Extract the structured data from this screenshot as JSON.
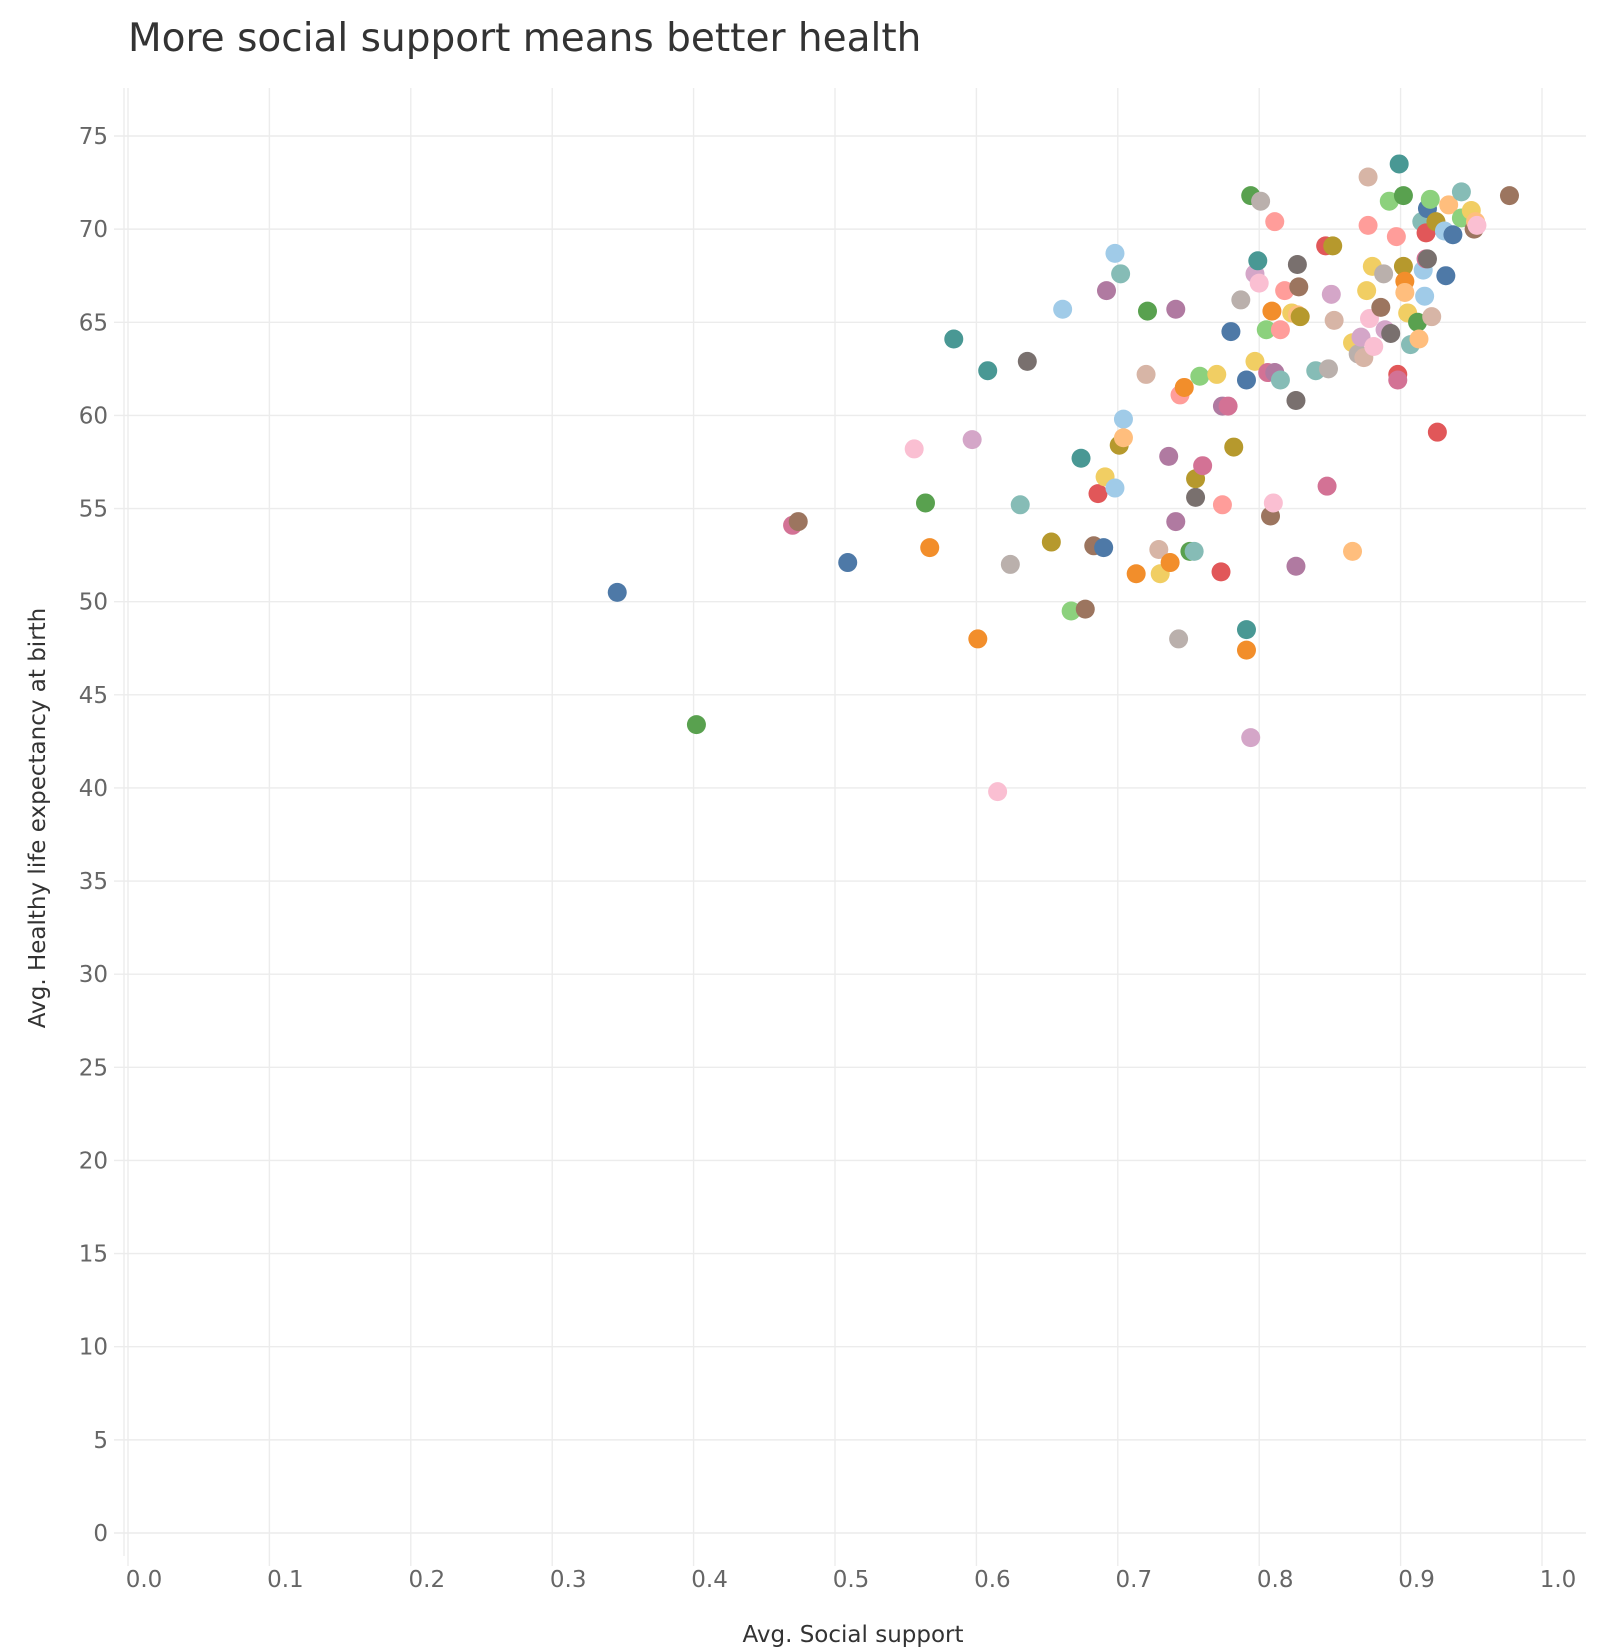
{
  "title": "More social support means better health",
  "chart_data": {
    "type": "scatter",
    "title": "More social support means better health",
    "xlabel": "Avg. Social support",
    "ylabel": "Avg. Healthy life expectancy at birth",
    "xlim": [
      0,
      1.0
    ],
    "ylim": [
      0,
      75
    ],
    "x_ticks": [
      "0.0",
      "0.1",
      "0.2",
      "0.3",
      "0.4",
      "0.5",
      "0.6",
      "0.7",
      "0.8",
      "0.9",
      "1.0"
    ],
    "y_ticks": [
      "0",
      "5",
      "10",
      "15",
      "20",
      "25",
      "30",
      "35",
      "40",
      "45",
      "50",
      "55",
      "60",
      "65",
      "70",
      "75"
    ],
    "grid": true,
    "legend": "none",
    "points": [
      {
        "x": 0.346,
        "y": 50.5,
        "color": "#4e79a7"
      },
      {
        "x": 0.402,
        "y": 43.4,
        "color": "#59a14f"
      },
      {
        "x": 0.47,
        "y": 54.1,
        "color": "#d37295"
      },
      {
        "x": 0.474,
        "y": 54.3,
        "color": "#9c755f"
      },
      {
        "x": 0.509,
        "y": 52.1,
        "color": "#4e79a7"
      },
      {
        "x": 0.556,
        "y": 58.2,
        "color": "#fabfd2"
      },
      {
        "x": 0.564,
        "y": 55.3,
        "color": "#59a14f"
      },
      {
        "x": 0.567,
        "y": 52.9,
        "color": "#f28e2b"
      },
      {
        "x": 0.584,
        "y": 64.1,
        "color": "#499894"
      },
      {
        "x": 0.597,
        "y": 58.7,
        "color": "#d4a6c8"
      },
      {
        "x": 0.601,
        "y": 48.0,
        "color": "#f28e2b"
      },
      {
        "x": 0.608,
        "y": 62.4,
        "color": "#499894"
      },
      {
        "x": 0.615,
        "y": 39.8,
        "color": "#fabfd2"
      },
      {
        "x": 0.624,
        "y": 52.0,
        "color": "#bab0ac"
      },
      {
        "x": 0.631,
        "y": 55.2,
        "color": "#86bcb6"
      },
      {
        "x": 0.636,
        "y": 62.9,
        "color": "#79706e"
      },
      {
        "x": 0.653,
        "y": 53.2,
        "color": "#b6992d"
      },
      {
        "x": 0.661,
        "y": 65.7,
        "color": "#a0cbe8"
      },
      {
        "x": 0.667,
        "y": 49.5,
        "color": "#8cd17d"
      },
      {
        "x": 0.674,
        "y": 57.7,
        "color": "#499894"
      },
      {
        "x": 0.677,
        "y": 49.6,
        "color": "#9c755f"
      },
      {
        "x": 0.683,
        "y": 53.0,
        "color": "#9c755f"
      },
      {
        "x": 0.686,
        "y": 55.8,
        "color": "#e15759"
      },
      {
        "x": 0.69,
        "y": 52.9,
        "color": "#4e79a7"
      },
      {
        "x": 0.691,
        "y": 56.7,
        "color": "#f1ce63"
      },
      {
        "x": 0.692,
        "y": 66.7,
        "color": "#b07aa1"
      },
      {
        "x": 0.698,
        "y": 56.1,
        "color": "#a0cbe8"
      },
      {
        "x": 0.698,
        "y": 68.7,
        "color": "#a0cbe8"
      },
      {
        "x": 0.701,
        "y": 58.4,
        "color": "#b6992d"
      },
      {
        "x": 0.702,
        "y": 67.6,
        "color": "#86bcb6"
      },
      {
        "x": 0.704,
        "y": 59.8,
        "color": "#a0cbe8"
      },
      {
        "x": 0.704,
        "y": 58.8,
        "color": "#ffbe7d"
      },
      {
        "x": 0.713,
        "y": 51.5,
        "color": "#f28e2b"
      },
      {
        "x": 0.72,
        "y": 62.2,
        "color": "#d7b5a6"
      },
      {
        "x": 0.721,
        "y": 65.6,
        "color": "#59a14f"
      },
      {
        "x": 0.729,
        "y": 52.8,
        "color": "#d7b5a6"
      },
      {
        "x": 0.73,
        "y": 51.5,
        "color": "#f1ce63"
      },
      {
        "x": 0.736,
        "y": 57.8,
        "color": "#b07aa1"
      },
      {
        "x": 0.737,
        "y": 52.1,
        "color": "#f28e2b"
      },
      {
        "x": 0.741,
        "y": 54.3,
        "color": "#b07aa1"
      },
      {
        "x": 0.741,
        "y": 65.7,
        "color": "#b07aa1"
      },
      {
        "x": 0.743,
        "y": 48.0,
        "color": "#bab0ac"
      },
      {
        "x": 0.744,
        "y": 61.1,
        "color": "#ff9d9a"
      },
      {
        "x": 0.747,
        "y": 61.5,
        "color": "#f28e2b"
      },
      {
        "x": 0.751,
        "y": 52.7,
        "color": "#59a14f"
      },
      {
        "x": 0.754,
        "y": 52.7,
        "color": "#86bcb6"
      },
      {
        "x": 0.755,
        "y": 55.6,
        "color": "#79706e"
      },
      {
        "x": 0.755,
        "y": 56.6,
        "color": "#b6992d"
      },
      {
        "x": 0.758,
        "y": 62.1,
        "color": "#8cd17d"
      },
      {
        "x": 0.76,
        "y": 57.3,
        "color": "#d37295"
      },
      {
        "x": 0.77,
        "y": 62.2,
        "color": "#f1ce63"
      },
      {
        "x": 0.773,
        "y": 51.6,
        "color": "#e15759"
      },
      {
        "x": 0.774,
        "y": 55.2,
        "color": "#ff9d9a"
      },
      {
        "x": 0.774,
        "y": 60.5,
        "color": "#b07aa1"
      },
      {
        "x": 0.778,
        "y": 60.5,
        "color": "#d37295"
      },
      {
        "x": 0.78,
        "y": 64.5,
        "color": "#4e79a7"
      },
      {
        "x": 0.782,
        "y": 58.3,
        "color": "#b6992d"
      },
      {
        "x": 0.787,
        "y": 66.2,
        "color": "#bab0ac"
      },
      {
        "x": 0.791,
        "y": 48.5,
        "color": "#499894"
      },
      {
        "x": 0.791,
        "y": 47.4,
        "color": "#f28e2b"
      },
      {
        "x": 0.791,
        "y": 61.9,
        "color": "#4e79a7"
      },
      {
        "x": 0.794,
        "y": 42.7,
        "color": "#d4a6c8"
      },
      {
        "x": 0.794,
        "y": 71.8,
        "color": "#59a14f"
      },
      {
        "x": 0.797,
        "y": 62.9,
        "color": "#f1ce63"
      },
      {
        "x": 0.797,
        "y": 67.6,
        "color": "#d4a6c8"
      },
      {
        "x": 0.799,
        "y": 68.3,
        "color": "#499894"
      },
      {
        "x": 0.8,
        "y": 67.1,
        "color": "#fabfd2"
      },
      {
        "x": 0.801,
        "y": 71.5,
        "color": "#bab0ac"
      },
      {
        "x": 0.805,
        "y": 64.6,
        "color": "#8cd17d"
      },
      {
        "x": 0.806,
        "y": 62.3,
        "color": "#d37295"
      },
      {
        "x": 0.808,
        "y": 54.6,
        "color": "#9c755f"
      },
      {
        "x": 0.809,
        "y": 65.6,
        "color": "#f28e2b"
      },
      {
        "x": 0.81,
        "y": 55.3,
        "color": "#fabfd2"
      },
      {
        "x": 0.811,
        "y": 62.3,
        "color": "#b07aa1"
      },
      {
        "x": 0.811,
        "y": 70.4,
        "color": "#ff9d9a"
      },
      {
        "x": 0.815,
        "y": 61.9,
        "color": "#86bcb6"
      },
      {
        "x": 0.815,
        "y": 64.6,
        "color": "#ff9d9a"
      },
      {
        "x": 0.818,
        "y": 66.7,
        "color": "#ff9d9a"
      },
      {
        "x": 0.823,
        "y": 65.5,
        "color": "#f1ce63"
      },
      {
        "x": 0.826,
        "y": 51.9,
        "color": "#b07aa1"
      },
      {
        "x": 0.826,
        "y": 60.8,
        "color": "#79706e"
      },
      {
        "x": 0.827,
        "y": 65.4,
        "color": "#ffbe7d"
      },
      {
        "x": 0.827,
        "y": 68.1,
        "color": "#79706e"
      },
      {
        "x": 0.828,
        "y": 66.9,
        "color": "#9c755f"
      },
      {
        "x": 0.829,
        "y": 65.3,
        "color": "#b6992d"
      },
      {
        "x": 0.84,
        "y": 62.4,
        "color": "#86bcb6"
      },
      {
        "x": 0.847,
        "y": 69.1,
        "color": "#e15759"
      },
      {
        "x": 0.848,
        "y": 56.2,
        "color": "#d37295"
      },
      {
        "x": 0.849,
        "y": 62.5,
        "color": "#bab0ac"
      },
      {
        "x": 0.851,
        "y": 66.5,
        "color": "#d4a6c8"
      },
      {
        "x": 0.852,
        "y": 69.1,
        "color": "#b6992d"
      },
      {
        "x": 0.853,
        "y": 65.1,
        "color": "#d7b5a6"
      },
      {
        "x": 0.866,
        "y": 52.7,
        "color": "#ffbe7d"
      },
      {
        "x": 0.866,
        "y": 63.9,
        "color": "#f1ce63"
      },
      {
        "x": 0.87,
        "y": 63.3,
        "color": "#bab0ac"
      },
      {
        "x": 0.872,
        "y": 64.2,
        "color": "#d4a6c8"
      },
      {
        "x": 0.874,
        "y": 63.1,
        "color": "#d7b5a6"
      },
      {
        "x": 0.876,
        "y": 66.7,
        "color": "#f1ce63"
      },
      {
        "x": 0.877,
        "y": 72.8,
        "color": "#d7b5a6"
      },
      {
        "x": 0.877,
        "y": 70.2,
        "color": "#ff9d9a"
      },
      {
        "x": 0.878,
        "y": 65.2,
        "color": "#fabfd2"
      },
      {
        "x": 0.88,
        "y": 68.0,
        "color": "#f1ce63"
      },
      {
        "x": 0.881,
        "y": 63.7,
        "color": "#fabfd2"
      },
      {
        "x": 0.886,
        "y": 65.8,
        "color": "#9c755f"
      },
      {
        "x": 0.888,
        "y": 67.6,
        "color": "#bab0ac"
      },
      {
        "x": 0.889,
        "y": 64.6,
        "color": "#d4a6c8"
      },
      {
        "x": 0.892,
        "y": 71.5,
        "color": "#8cd17d"
      },
      {
        "x": 0.893,
        "y": 64.4,
        "color": "#79706e"
      },
      {
        "x": 0.897,
        "y": 69.6,
        "color": "#ff9d9a"
      },
      {
        "x": 0.898,
        "y": 62.2,
        "color": "#e15759"
      },
      {
        "x": 0.898,
        "y": 61.9,
        "color": "#d37295"
      },
      {
        "x": 0.899,
        "y": 73.5,
        "color": "#499894"
      },
      {
        "x": 0.902,
        "y": 71.8,
        "color": "#59a14f"
      },
      {
        "x": 0.902,
        "y": 68.0,
        "color": "#b6992d"
      },
      {
        "x": 0.903,
        "y": 67.2,
        "color": "#f28e2b"
      },
      {
        "x": 0.903,
        "y": 66.6,
        "color": "#ffbe7d"
      },
      {
        "x": 0.905,
        "y": 65.5,
        "color": "#f1ce63"
      },
      {
        "x": 0.907,
        "y": 63.8,
        "color": "#86bcb6"
      },
      {
        "x": 0.912,
        "y": 65.0,
        "color": "#59a14f"
      },
      {
        "x": 0.913,
        "y": 64.1,
        "color": "#ffbe7d"
      },
      {
        "x": 0.915,
        "y": 70.4,
        "color": "#86bcb6"
      },
      {
        "x": 0.916,
        "y": 67.8,
        "color": "#a0cbe8"
      },
      {
        "x": 0.917,
        "y": 66.4,
        "color": "#a0cbe8"
      },
      {
        "x": 0.918,
        "y": 69.8,
        "color": "#e15759"
      },
      {
        "x": 0.918,
        "y": 68.4,
        "color": "#d37295"
      },
      {
        "x": 0.919,
        "y": 71.1,
        "color": "#4e79a7"
      },
      {
        "x": 0.919,
        "y": 68.4,
        "color": "#79706e"
      },
      {
        "x": 0.921,
        "y": 71.6,
        "color": "#8cd17d"
      },
      {
        "x": 0.922,
        "y": 65.3,
        "color": "#d7b5a6"
      },
      {
        "x": 0.925,
        "y": 70.4,
        "color": "#b6992d"
      },
      {
        "x": 0.926,
        "y": 59.1,
        "color": "#e15759"
      },
      {
        "x": 0.931,
        "y": 69.9,
        "color": "#a0cbe8"
      },
      {
        "x": 0.932,
        "y": 67.5,
        "color": "#4e79a7"
      },
      {
        "x": 0.934,
        "y": 71.3,
        "color": "#ffbe7d"
      },
      {
        "x": 0.937,
        "y": 69.7,
        "color": "#4e79a7"
      },
      {
        "x": 0.943,
        "y": 72.0,
        "color": "#86bcb6"
      },
      {
        "x": 0.943,
        "y": 70.6,
        "color": "#8cd17d"
      },
      {
        "x": 0.95,
        "y": 71.0,
        "color": "#f1ce63"
      },
      {
        "x": 0.952,
        "y": 70.0,
        "color": "#9c755f"
      },
      {
        "x": 0.953,
        "y": 70.4,
        "color": "#ffbe7d"
      },
      {
        "x": 0.954,
        "y": 70.2,
        "color": "#fabfd2"
      },
      {
        "x": 0.977,
        "y": 71.8,
        "color": "#9c755f"
      }
    ]
  }
}
